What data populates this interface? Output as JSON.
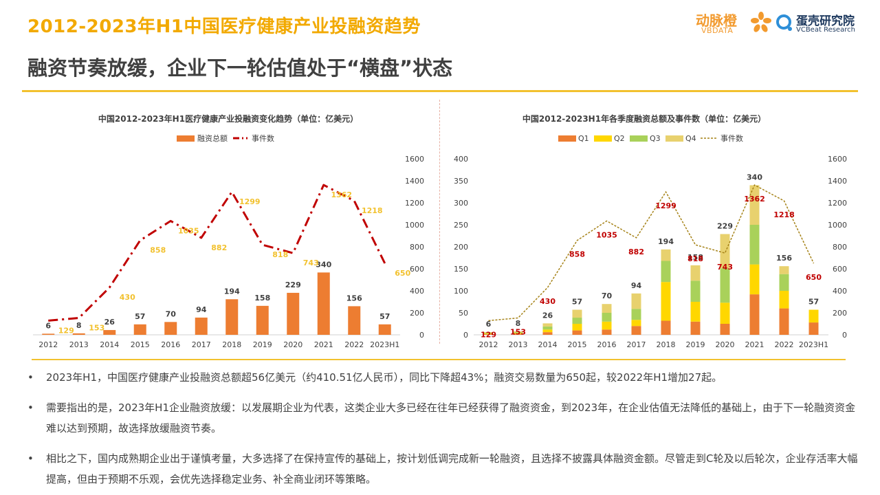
{
  "header": {
    "title": "2012-2023年H1中国医疗健康产业投融资趋势",
    "subtitle": "融资节奏放缓，企业下一轮估值处于“横盘”状态",
    "logo_vbdata": "动脉橙",
    "logo_vbdata_sub": "VBDATA",
    "logo_vcbeat": "蛋壳研究院",
    "logo_vcbeat_sub": "VCBeat Research"
  },
  "colors": {
    "accent": "#F2A900",
    "bar_orange": "#ED7D31",
    "line_red": "#C00000",
    "q2_yellow": "#FFD700",
    "q3_green": "#A9D15A",
    "q4_tan": "#E8D16E",
    "label_yellow": "#F2C12E"
  },
  "chart_data": [
    {
      "type": "bar",
      "title": "中国2012-2023年H1医疗健康产业投融资变化趋势（单位：亿美元）",
      "categories": [
        "2012",
        "2013",
        "2014",
        "2015",
        "2016",
        "2017",
        "2018",
        "2019",
        "2020",
        "2021",
        "2022",
        "2023H1"
      ],
      "series": [
        {
          "name": "融资总额",
          "kind": "bar",
          "axis": "left",
          "values": [
            6,
            8,
            26,
            57,
            70,
            94,
            194,
            158,
            229,
            340,
            156,
            57
          ]
        },
        {
          "name": "事件数",
          "kind": "line",
          "axis": "right",
          "values": [
            129,
            153,
            430,
            858,
            1035,
            882,
            1299,
            818,
            743,
            1362,
            1218,
            650
          ]
        }
      ],
      "ylim_left": [
        0,
        1200
      ],
      "ylim_right": [
        0,
        1600
      ],
      "yticks_right": [
        0,
        200,
        400,
        600,
        800,
        1000,
        1200,
        1400,
        1600
      ],
      "legend": "top"
    },
    {
      "type": "bar",
      "title": "中国2012-2023H1年各季度融资总额及事件数（单位：亿美元）",
      "categories": [
        "2012",
        "2013",
        "2014",
        "2015",
        "2016",
        "2017",
        "2018",
        "2019",
        "2020",
        "2021",
        "2022",
        "2023H1"
      ],
      "stacked": true,
      "series": [
        {
          "name": "Q1",
          "kind": "bar",
          "axis": "left",
          "values": [
            1.5,
            2,
            6,
            10,
            12,
            20,
            32,
            30,
            25,
            92,
            60,
            28
          ]
        },
        {
          "name": "Q2",
          "kind": "bar",
          "axis": "left",
          "values": [
            1.5,
            2,
            6,
            15,
            18,
            14,
            88,
            45,
            48,
            68,
            40,
            29
          ]
        },
        {
          "name": "Q3",
          "kind": "bar",
          "axis": "left",
          "values": [
            1.5,
            2,
            7,
            14,
            20,
            25,
            48,
            48,
            78,
            90,
            38,
            0
          ]
        },
        {
          "name": "Q4",
          "kind": "bar",
          "axis": "left",
          "values": [
            1.5,
            2,
            7,
            18,
            20,
            35,
            26,
            35,
            78,
            90,
            18,
            0
          ]
        },
        {
          "name": "事件数",
          "kind": "line",
          "axis": "right",
          "values": [
            129,
            153,
            430,
            858,
            1035,
            882,
            1299,
            818,
            743,
            1362,
            1218,
            650
          ]
        }
      ],
      "totals": [
        6,
        8,
        26,
        57,
        70,
        94,
        194,
        158,
        229,
        340,
        156,
        57
      ],
      "ylim_left": [
        0,
        400
      ],
      "ylim_right": [
        0,
        1600
      ],
      "yticks_left": [
        0,
        50,
        100,
        150,
        200,
        250,
        300,
        350,
        400
      ],
      "yticks_right": [
        0,
        200,
        400,
        600,
        800,
        1000,
        1200,
        1400,
        1600
      ],
      "legend": "top"
    }
  ],
  "bullets": [
    "2023年H1，中国医疗健康产业投融资总额超56亿美元（约410.51亿人民币），同比下降超43%；融资交易数量为650起，较2022年H1增加27起。",
    "需要指出的是，2023年H1企业融资放缓：以发展期企业为代表，这类企业大多已经在往年已经获得了融资资金，到2023年，在企业估值无法降低的基础上，由于下一轮融资资金难以达到预期，故选择放缓融资节奏。",
    "相比之下，国内成熟期企业出于谨慎考量，大多选择了在保持宣传的基础上，按计划低调完成新一轮融资，且选择不披露具体融资金额。尽管走到C轮及以后轮次，企业存活率大幅提高，但由于预期不乐观，会优先选择稳定业务、补全商业闭环等策略。"
  ],
  "bullet_symbol": "•"
}
